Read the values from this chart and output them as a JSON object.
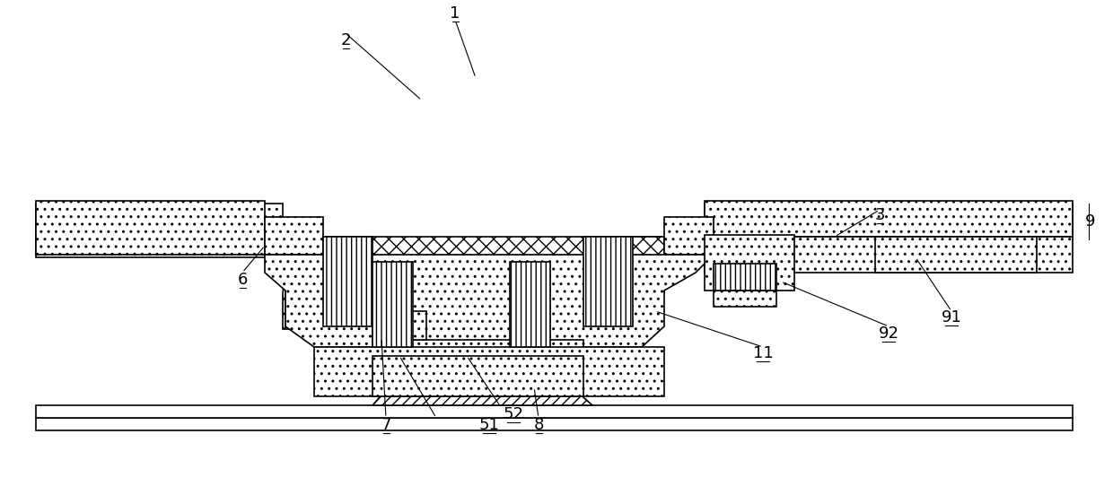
{
  "figure_width": 12.4,
  "figure_height": 5.42,
  "dpi": 100,
  "bg_color": "#ffffff",
  "line_color": "#000000",
  "lw": 1.2
}
